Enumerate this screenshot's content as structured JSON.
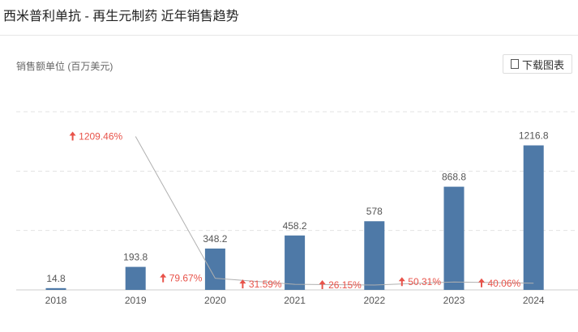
{
  "title": "西米普利单抗 - 再生元制药 近年销售趋势",
  "unit_label": "销售额单位 (百万美元)",
  "download_label": "下载图表",
  "chart_data": {
    "type": "bar",
    "categories": [
      "2018",
      "2019",
      "2020",
      "2021",
      "2022",
      "2023",
      "2024"
    ],
    "values": [
      14.8,
      193.8,
      348.2,
      458.2,
      578,
      868.8,
      1216.8
    ],
    "value_labels": [
      "14.8",
      "193.8",
      "348.2",
      "458.2",
      "578",
      "868.8",
      "1216.8"
    ],
    "ylim": [
      0,
      1500
    ],
    "grid": true,
    "bar_color": "#4e79a7",
    "growth_series": {
      "type": "line",
      "x": [
        "2019",
        "2020",
        "2021",
        "2022",
        "2023",
        "2024"
      ],
      "values": [
        1209.46,
        79.67,
        31.59,
        26.15,
        50.31,
        40.06
      ],
      "labels": [
        "1209.46%",
        "79.67%",
        "31.59%",
        "26.15%",
        "50.31%",
        "40.06%"
      ],
      "label_color": "#e8534a",
      "line_color": "#b0b0b0"
    }
  }
}
